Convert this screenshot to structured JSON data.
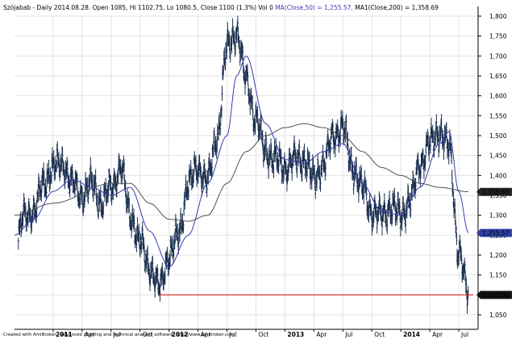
{
  "header": {
    "text": "Szójabab - Daily 2014.08.28. Open 1085, Hi 1102.75, Lo 1080.5, Close 1100 (1.3%) Vol 0",
    "ma50_text": "MA(Close,50) = 1,255.57,",
    "ma200_text": "MA1(Close,200) = 1,358.69"
  },
  "footer": "Created with AmiBroker - advanced charting and technical analysis software. http://www.amibroker.com",
  "colors": {
    "price": "#1a2f4f",
    "ma50": "#3a3ab0",
    "ma200": "#505050",
    "support": "#d42020",
    "ma50_badge": "#2b3fa8",
    "ma200_badge": "#222222",
    "price_badge": "#111111"
  },
  "chart_data": {
    "type": "line",
    "chart_style": "ohlc-bars",
    "ylim": [
      1050,
      1800
    ],
    "y_ticks": [
      "1,050",
      "1,100",
      "1,150",
      "1,200",
      "1,250",
      "1,300",
      "1,350",
      "1,400",
      "1,450",
      "1,500",
      "1,550",
      "1,600",
      "1,650",
      "1,700",
      "1,750",
      "1,800"
    ],
    "x_ticks": [
      "2011",
      "Apr",
      "Jul",
      "Oct",
      "2012",
      "Apr",
      "Jul",
      "Oct",
      "2013",
      "Apr",
      "Jul",
      "Oct",
      "2014",
      "Apr",
      "Jul"
    ],
    "x_range": [
      "2010-09",
      "2014-09"
    ],
    "grid": true,
    "series": [
      {
        "name": "Szójabab",
        "x": [
          "2010-09",
          "2010-10",
          "2010-11",
          "2010-12",
          "2011-01",
          "2011-02",
          "2011-03",
          "2011-04",
          "2011-05",
          "2011-06",
          "2011-07",
          "2011-08",
          "2011-09",
          "2011-10",
          "2011-11",
          "2011-12",
          "2012-01",
          "2012-02",
          "2012-03",
          "2012-04",
          "2012-05",
          "2012-06",
          "2012-07",
          "2012-08",
          "2012-09",
          "2012-10",
          "2012-11",
          "2012-12",
          "2013-01",
          "2013-02",
          "2013-03",
          "2013-04",
          "2013-05",
          "2013-06",
          "2013-07",
          "2013-08",
          "2013-09",
          "2013-10",
          "2013-11",
          "2013-12",
          "2014-01",
          "2014-02",
          "2014-03",
          "2014-04",
          "2014-05",
          "2014-06",
          "2014-07",
          "2014-08"
        ],
        "values": [
          1200,
          1300,
          1310,
          1380,
          1420,
          1430,
          1380,
          1350,
          1380,
          1330,
          1370,
          1420,
          1300,
          1230,
          1170,
          1120,
          1200,
          1250,
          1380,
          1420,
          1390,
          1500,
          1720,
          1760,
          1640,
          1540,
          1460,
          1440,
          1420,
          1440,
          1440,
          1390,
          1430,
          1500,
          1520,
          1420,
          1370,
          1310,
          1300,
          1320,
          1300,
          1340,
          1430,
          1480,
          1510,
          1470,
          1210,
          1100
        ]
      },
      {
        "name": "MA(Close,50)",
        "x": [
          "2010-09",
          "2010-11",
          "2011-01",
          "2011-03",
          "2011-05",
          "2011-07",
          "2011-09",
          "2011-11",
          "2012-01",
          "2012-03",
          "2012-05",
          "2012-07",
          "2012-08",
          "2012-09",
          "2012-11",
          "2013-01",
          "2013-03",
          "2013-05",
          "2013-07",
          "2013-09",
          "2013-11",
          "2014-01",
          "2014-03",
          "2014-05",
          "2014-06",
          "2014-07",
          "2014-08"
        ],
        "values": [
          1250,
          1290,
          1360,
          1390,
          1370,
          1350,
          1370,
          1260,
          1170,
          1250,
          1380,
          1500,
          1650,
          1700,
          1530,
          1440,
          1430,
          1460,
          1480,
          1380,
          1310,
          1300,
          1370,
          1480,
          1510,
          1360,
          1256
        ]
      },
      {
        "name": "MA1(Close,200)",
        "x": [
          "2010-09",
          "2011-01",
          "2011-07",
          "2011-09",
          "2011-11",
          "2012-01",
          "2012-03",
          "2012-05",
          "2012-07",
          "2012-09",
          "2012-11",
          "2013-01",
          "2013-03",
          "2013-05",
          "2013-07",
          "2013-09",
          "2013-11",
          "2014-01",
          "2014-03",
          "2014-05",
          "2014-08"
        ],
        "values": [
          1300,
          1330,
          1380,
          1380,
          1330,
          1290,
          1285,
          1300,
          1380,
          1460,
          1500,
          1520,
          1530,
          1520,
          1500,
          1460,
          1420,
          1400,
          1380,
          1370,
          1359
        ]
      }
    ],
    "support_line": {
      "value": 1100,
      "from": "2011-12",
      "to": "2014-08"
    },
    "price_badges": [
      {
        "label": "1,358.69",
        "value": 1358.69,
        "series": "MA1(Close,200)"
      },
      {
        "label": "1,255.57",
        "value": 1255.57,
        "series": "MA(Close,50)"
      },
      {
        "label": "1,100.00",
        "value": 1100,
        "series": "Close"
      }
    ]
  }
}
